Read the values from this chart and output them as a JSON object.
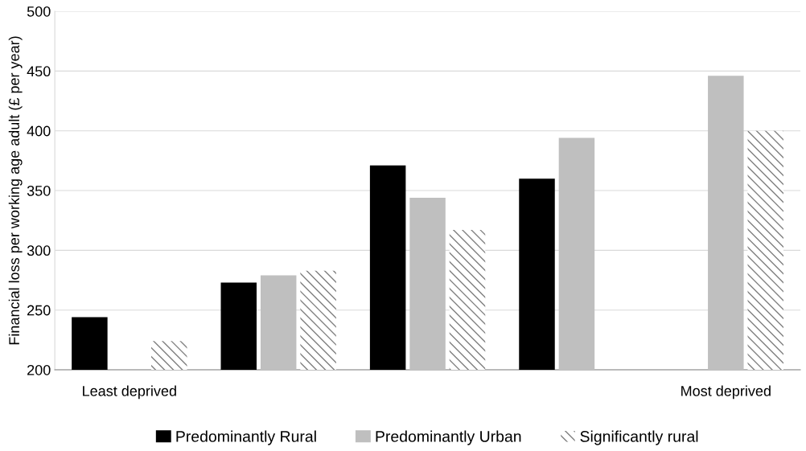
{
  "chart_data": {
    "type": "bar",
    "ylabel": "Financial loss per working age adult (£ per year)",
    "categories": [
      "Least deprived",
      null,
      null,
      null,
      "Most deprived"
    ],
    "series": [
      {
        "name": "Predominantly Rural",
        "color": "#000000",
        "values": [
          244,
          273,
          371,
          360,
          200
        ]
      },
      {
        "name": "Predominantly Urban",
        "color": "#bfbfbf",
        "values": [
          200,
          279,
          344,
          394,
          446
        ]
      },
      {
        "name": "Significantly rural",
        "color": "#7f7f7f",
        "values": [
          224,
          283,
          317,
          200,
          400
        ]
      }
    ],
    "ylim": [
      200,
      500
    ],
    "yticks": [
      200,
      250,
      300,
      350,
      400,
      450,
      500
    ],
    "grid": "y",
    "legend": "bottom"
  }
}
